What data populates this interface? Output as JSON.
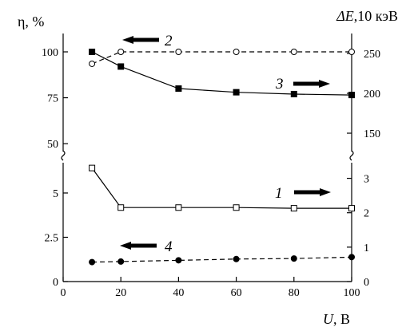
{
  "chart_data": {
    "type": "line",
    "left_axis_title": "η, %",
    "right_axis_title_symbol": "ΔE",
    "right_axis_title_rest": ",10 кэВ",
    "x_axis_title_symbol": "U",
    "x_axis_title_rest": ", В",
    "x_ticks": [
      "0",
      "20",
      "40",
      "60",
      "80",
      "100"
    ],
    "left_top_ticks": [
      "50",
      "75",
      "100"
    ],
    "left_bottom_ticks": [
      "0",
      "2.5",
      "5"
    ],
    "right_top_ticks": [
      "150",
      "200",
      "250"
    ],
    "right_bottom_ticks": [
      "0",
      "1",
      "2",
      "3"
    ],
    "x_range": [
      0,
      100
    ],
    "panels": {
      "top": {
        "left_range": [
          47,
          110
        ],
        "right_range": [
          130,
          275
        ]
      },
      "bottom": {
        "left_range": [
          0,
          6.8
        ],
        "right_range": [
          0,
          3.5
        ]
      }
    },
    "series": [
      {
        "name": "1",
        "panel": "bottom",
        "axis": "right",
        "marker": "open-square",
        "line": "solid",
        "x": [
          10,
          20,
          40,
          60,
          80,
          100
        ],
        "y": [
          3.3,
          2.15,
          2.15,
          2.15,
          2.13,
          2.13
        ]
      },
      {
        "name": "2",
        "panel": "top",
        "axis": "left",
        "marker": "open-circle",
        "line": "dashed",
        "x": [
          10,
          20,
          40,
          60,
          80,
          100
        ],
        "y": [
          93.5,
          100,
          100,
          100,
          100,
          100
        ]
      },
      {
        "name": "3",
        "panel": "top",
        "axis": "left",
        "marker": "filled-square",
        "line": "solid",
        "x": [
          10,
          20,
          40,
          60,
          80,
          100
        ],
        "y": [
          100,
          92,
          80,
          78,
          77,
          76.5
        ]
      },
      {
        "name": "4",
        "panel": "bottom",
        "axis": "left",
        "marker": "filled-circle",
        "line": "dashed",
        "x": [
          10,
          20,
          40,
          60,
          80,
          100
        ],
        "y": [
          1.1,
          1.13,
          1.2,
          1.27,
          1.3,
          1.38
        ]
      }
    ],
    "series_arrows": {
      "1": "right",
      "2": "left",
      "3": "right",
      "4": "left"
    },
    "grid": false,
    "axis_breaks": true
  }
}
